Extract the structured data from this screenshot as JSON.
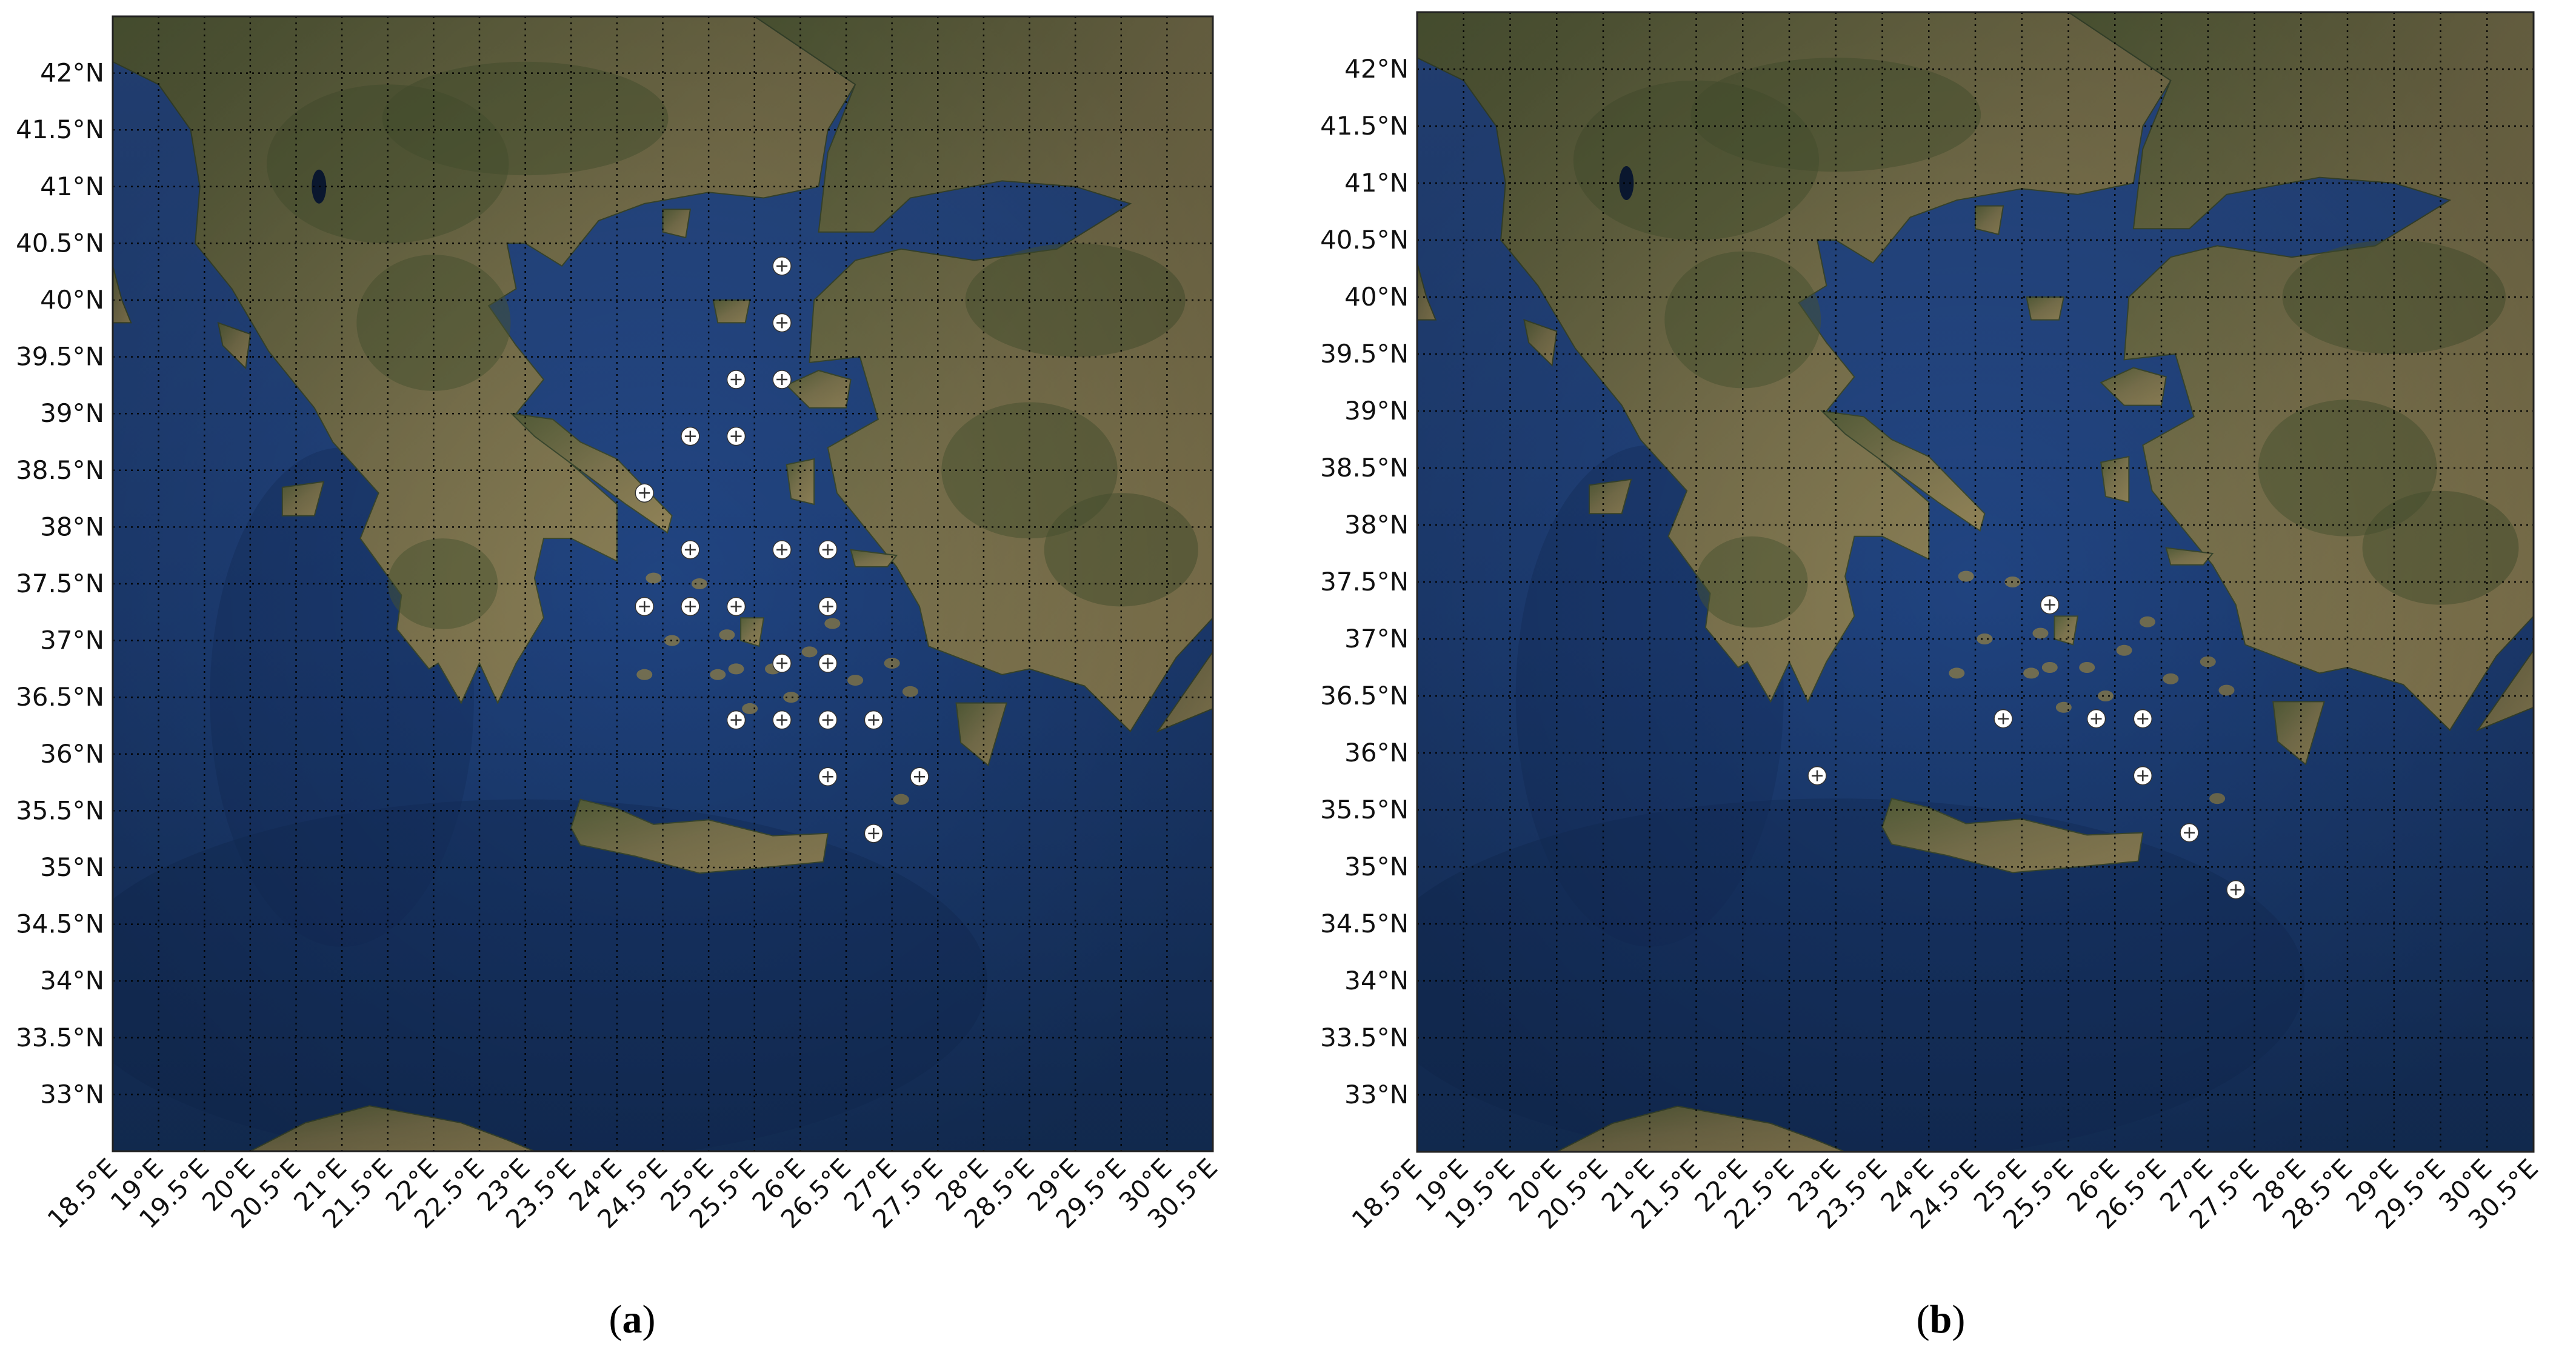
{
  "figure": {
    "panels": [
      {
        "label": "a",
        "stations": [
          {
            "lon": 25.8,
            "lat": 40.3
          },
          {
            "lon": 25.8,
            "lat": 39.8
          },
          {
            "lon": 25.8,
            "lat": 39.3
          },
          {
            "lon": 25.3,
            "lat": 39.3
          },
          {
            "lon": 24.8,
            "lat": 38.8
          },
          {
            "lon": 25.3,
            "lat": 38.8
          },
          {
            "lon": 24.3,
            "lat": 38.3
          },
          {
            "lon": 24.8,
            "lat": 37.8
          },
          {
            "lon": 25.8,
            "lat": 37.8
          },
          {
            "lon": 26.3,
            "lat": 37.8
          },
          {
            "lon": 24.3,
            "lat": 37.3
          },
          {
            "lon": 24.8,
            "lat": 37.3
          },
          {
            "lon": 25.3,
            "lat": 37.3
          },
          {
            "lon": 26.3,
            "lat": 37.3
          },
          {
            "lon": 25.8,
            "lat": 36.8
          },
          {
            "lon": 26.3,
            "lat": 36.8
          },
          {
            "lon": 25.3,
            "lat": 36.3
          },
          {
            "lon": 25.8,
            "lat": 36.3
          },
          {
            "lon": 26.3,
            "lat": 36.3
          },
          {
            "lon": 26.8,
            "lat": 36.3
          },
          {
            "lon": 26.3,
            "lat": 35.8
          },
          {
            "lon": 27.3,
            "lat": 35.8
          },
          {
            "lon": 26.8,
            "lat": 35.3
          }
        ]
      },
      {
        "label": "b",
        "stations": [
          {
            "lon": 25.3,
            "lat": 37.3
          },
          {
            "lon": 24.8,
            "lat": 36.3
          },
          {
            "lon": 25.8,
            "lat": 36.3
          },
          {
            "lon": 26.3,
            "lat": 36.3
          },
          {
            "lon": 22.8,
            "lat": 35.8
          },
          {
            "lon": 26.3,
            "lat": 35.8
          },
          {
            "lon": 26.8,
            "lat": 35.3
          },
          {
            "lon": 27.3,
            "lat": 34.8
          }
        ]
      }
    ],
    "axes": {
      "lon_range": [
        18.5,
        30.5
      ],
      "lat_range": [
        32.5,
        42.5
      ],
      "lon_ticks": [
        "18.5°E",
        "19°E",
        "19.5°E",
        "20°E",
        "20.5°E",
        "21°E",
        "21.5°E",
        "22°E",
        "22.5°E",
        "23°E",
        "23.5°E",
        "24°E",
        "24.5°E",
        "25°E",
        "25.5°E",
        "26°E",
        "26.5°E",
        "27°E",
        "27.5°E",
        "28°E",
        "28.5°E",
        "29°E",
        "29.5°E",
        "30°E",
        "30.5°E"
      ],
      "lat_ticks": [
        "33°N",
        "33.5°N",
        "34°N",
        "34.5°N",
        "35°N",
        "35.5°N",
        "36°N",
        "36.5°N",
        "37°N",
        "37.5°N",
        "38°N",
        "38.5°N",
        "39°N",
        "39.5°N",
        "40°N",
        "40.5°N",
        "41°N",
        "41.5°N",
        "42°N"
      ]
    },
    "colors": {
      "sea": "#1d3f7a",
      "sea_deep": "#142f5e",
      "land": "#7d7650",
      "land_dark": "#4e5a33",
      "land_dry": "#9a8a5e",
      "lake": "#0c1c38",
      "station": "#ffffff",
      "gridline": "#000000"
    }
  }
}
